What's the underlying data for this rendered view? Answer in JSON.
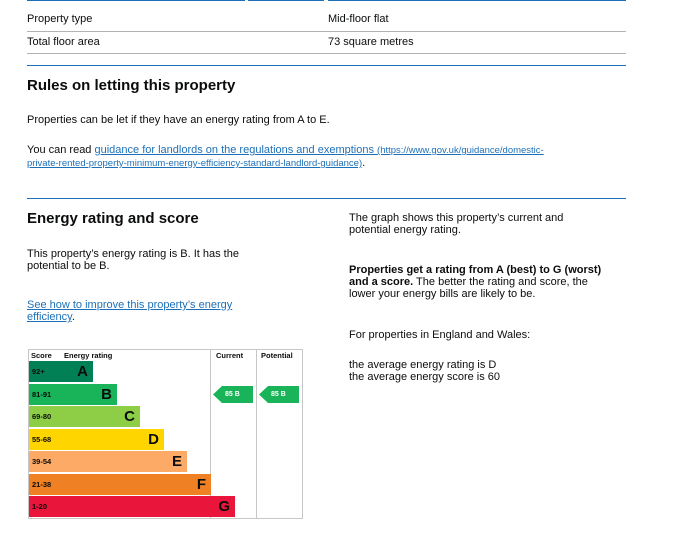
{
  "summary": {
    "rows": [
      {
        "label": "Property type",
        "value": "Mid-floor flat"
      },
      {
        "label": "Total floor area",
        "value": "73 square metres"
      }
    ]
  },
  "rules": {
    "heading": "Rules on letting this property",
    "intro": "Properties can be let if they have an energy rating from A to E.",
    "read_prefix": "You can read",
    "link_text": "guidance for landlords on the regulations and exemptions",
    "link_url_line1": "(https://www.gov.uk/guidance/domestic-",
    "link_url_line2": "private-rented-property-minimum-energy-efficiency-standard-landlord-guidance)",
    "period": "."
  },
  "energy": {
    "heading": "Energy rating and score",
    "rating_line1": "This property’s energy rating is B. It has the",
    "rating_line2": "potential to be B.",
    "improve_line1": "See how to improve this property’s energy",
    "improve_line2": "efficiency",
    "period": ".",
    "graph_line1": "The graph shows this property’s current and",
    "graph_line2": "potential energy rating.",
    "bold_line1": "Properties get a rating from A (best) to G (worst)",
    "bold_line2_bold": "and a score.",
    "bold_line2_rest": " The better the rating and score, the",
    "bold_line3": "lower your energy bills are likely to be.",
    "regions": "For properties in England and Wales:",
    "average_rating": "the average energy rating is D",
    "average_score": "the average energy score is 60"
  },
  "chart_data": {
    "type": "table",
    "headers": {
      "score": "Score",
      "rating": "Energy rating",
      "current": "Current",
      "potential": "Potential"
    },
    "bands": [
      {
        "score": "92+",
        "letter": "A",
        "color": "#008054"
      },
      {
        "score": "81-91",
        "letter": "B",
        "color": "#19b459"
      },
      {
        "score": "69-80",
        "letter": "C",
        "color": "#8dce46"
      },
      {
        "score": "55-68",
        "letter": "D",
        "color": "#ffd500"
      },
      {
        "score": "39-54",
        "letter": "E",
        "color": "#fcaa65"
      },
      {
        "score": "21-38",
        "letter": "F",
        "color": "#ef8023"
      },
      {
        "score": "1-20",
        "letter": "G",
        "color": "#e9153b"
      }
    ],
    "current": {
      "score": 85,
      "letter": "B",
      "label": "85 B"
    },
    "potential": {
      "score": 85,
      "letter": "B",
      "label": "85 B"
    }
  }
}
